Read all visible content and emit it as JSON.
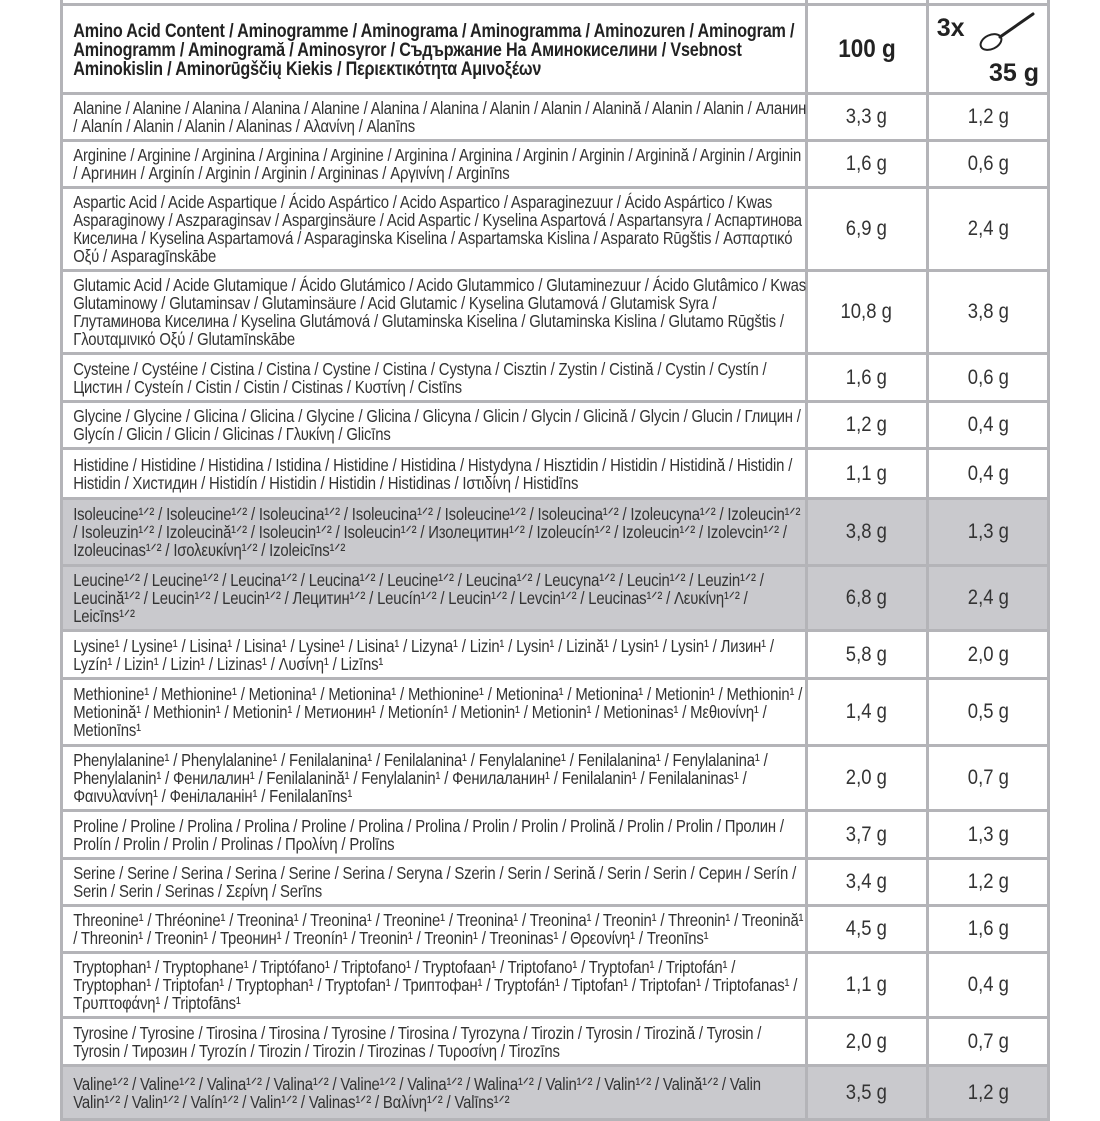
{
  "header": {
    "title": "Amino Acid Content / Aminogramme / Aminograma / Aminogramma / Aminozuren / Aminogram / Aminogramm / Aminogramă / Aminosyror / Съдържание На Аминокиселини / Vsebnost Aminokislin / Aminorūgščių Kiekis / Περιεκτικότητα Αμινοξέων",
    "col_100g": "100 g",
    "serving_count": "3x",
    "serving_icon": "scoop-icon",
    "serving_weight": "35 g"
  },
  "rows": [
    {
      "name": "Alanine / Alanine / Alanina / Alanina / Alanine / Alanina / Alanina / Alanin / Alanin / Alanină / Alanin / Alanin / Аланин / Alanín / Alanin / Alanin / Alaninas / Αλανίνη / Alanīns",
      "per100": "3,3 g",
      "perServing": "1,2 g",
      "shaded": false
    },
    {
      "name": "Arginine / Arginine / Arginina / Arginina / Arginine / Arginina / Arginina / Arginin / Arginin / Arginină / Arginin / Arginin / Аргинин / Arginín / Arginin / Arginin / Argininas / Αργινίνη / Arginīns",
      "per100": "1,6 g",
      "perServing": "0,6 g",
      "shaded": false
    },
    {
      "name": "Aspartic Acid / Acide Aspartique / Ácido Aspártico / Acido Aspartico / Asparaginezuur / Ácido Aspártico / Kwas Asparaginowy / Aszparaginsav / Asparginsäure / Acid Aspartic / Kyselina Aspartová / Aspartansyra / Аспартинова Киселина / Kyselina Aspartamová / Asparaginska Kiselina / Aspartamska Kislina / Asparato Rūgštis / Ασπαρτικό Οξύ / Asparagīnskābe",
      "per100": "6,9 g",
      "perServing": "2,4 g",
      "shaded": false
    },
    {
      "name": "Glutamic Acid / Acide Glutamique / Ácido Glutámico / Acido Glutammico / Glutaminezuur / Ácido Glutâmico / Kwas Glutaminowy / Glutaminsav / Glutaminsäure  / Acid Glutamic / Kyselina Glutamová / Glutamisk Syra / Глутаминова Киселина / Kyselina Glutámová / Glutaminska Kiselina / Glutaminska Kislina / Glutamo Rūgštis / Γλουταμινικό Οξύ / Glutamīnskābe",
      "per100": "10,8 g",
      "perServing": "3,8 g",
      "shaded": false
    },
    {
      "name": "Cysteine / Cystéine / Cistina / Cistina / Cystine / Cistina / Cystyna / Cisztin / Zystin / Cistină / Cystin / Cystín / Цистин / Cysteín / Cistin / Cistin / Cistinas / Κυστίνη / Cistīns",
      "per100": "1,6 g",
      "perServing": "0,6 g",
      "shaded": false
    },
    {
      "name": "Glycine / Glycine / Glicina / Glicina / Glycine / Glicina / Glicyna / Glicin / Glycin / Glicină / Glycin / Glucin / Глицин / Glycín / Glicin / Glicin / Glicinas / Γλυκίνη / Glicīns",
      "per100": "1,2 g",
      "perServing": "0,4 g",
      "shaded": false
    },
    {
      "name": "Histidine / Histidine / Histidina / Istidina / Histidine / Histidina / Histydyna / Hisztidin / Histidin / Histidină / Histidin / Histidin / Хистидин / Histidín / Histidin / Histidin / Histidinas / Ιστιδίνη / Histidīns",
      "per100": "1,1 g",
      "perServing": "0,4 g",
      "shaded": false
    },
    {
      "name": "Isoleucine¹ᐟ² / Isoleucine¹ᐟ² / Isoleucina¹ᐟ² / Isoleucina¹ᐟ² / Isoleucine¹ᐟ² / Isoleucina¹ᐟ² / Izoleucyna¹ᐟ² / Izoleucin¹ᐟ² / Isoleuzin¹ᐟ² / Izoleucină¹ᐟ² / Isoleucin¹ᐟ² / Isoleucin¹ᐟ² / Изолецитин¹ᐟ² / Izoleucín¹ᐟ² / Izoleucin¹ᐟ² / Izolevcin¹ᐟ² / Izoleucinas¹ᐟ² / Ισολευκίνη¹ᐟ² / Izoleicīns¹ᐟ²",
      "per100": "3,8 g",
      "perServing": "1,3 g",
      "shaded": true
    },
    {
      "name": "Leucine¹ᐟ² / Leucine¹ᐟ² / Leucina¹ᐟ² / Leucina¹ᐟ² / Leucine¹ᐟ² / Leucina¹ᐟ² / Leucyna¹ᐟ² / Leucin¹ᐟ² / Leuzin¹ᐟ² / Leucină¹ᐟ² / Leucin¹ᐟ² / Leucin¹ᐟ² / Лецитин¹ᐟ² / Leucín¹ᐟ² / Leucin¹ᐟ² / Levcin¹ᐟ² / Leucinas¹ᐟ² / Λευκίνη¹ᐟ² / Leicīns¹ᐟ²",
      "per100": "6,8 g",
      "perServing": "2,4 g",
      "shaded": true
    },
    {
      "name": "Lysine¹ / Lysine¹ / Lisina¹ / Lisina¹ / Lysine¹ / Lisina¹ / Lizyna¹ / Lizin¹ / Lysin¹ / Lizină¹ / Lysin¹ / Lysin¹ / Лизин¹ / Lyzín¹ / Lizin¹ / Lizin¹ / Lizinas¹ / Λυσίνη¹ / Lizīns¹",
      "per100": "5,8 g",
      "perServing": "2,0 g",
      "shaded": false
    },
    {
      "name": "Methionine¹ / Methionine¹ / Metionina¹ / Metionina¹ / Methionine¹ / Metionina¹ / Metionina¹ / Metionin¹ / Methionin¹ / Metionină¹ / Methionin¹ / Metionin¹ / Метионин¹ / Metionín¹ / Metionin¹ / Metionin¹ / Metioninas¹ / Μεθιονίνη¹ / Metionīns¹",
      "per100": "1,4 g",
      "perServing": "0,5 g",
      "shaded": false
    },
    {
      "name": "Phenylalanine¹ / Phenylalanine¹ / Fenilalanina¹ / Fenilalanina¹ / Fenylalanine¹ / Fenilalanina¹ / Fenylalanina¹ / Phenylalanin¹ / Фенилалин¹ / Fenilalanină¹ / Fenylalanin¹ / Фенилаланин¹ / Fenilalanin¹ / Fenilalaninas¹ / Φαινυλανίνη¹ / Фенілаланін¹ / Fenilalanīns¹",
      "per100": "2,0 g",
      "perServing": "0,7 g",
      "shaded": false
    },
    {
      "name": "Proline / Proline / Prolina / Prolina / Proline / Prolina / Prolina / Prolin / Prolin / Prolină / Prolin / Prolin / Пролин / Prolín / Prolin / Prolin / Prolinas / Προλίνη / Prolīns",
      "per100": "3,7 g",
      "perServing": "1,3 g",
      "shaded": false
    },
    {
      "name": "Serine / Serine / Serina / Serina / Serine / Serina / Seryna / Szerin / Serin / Serină / Serin / Serin / Серин / Serín / Serin / Serin / Serinas / Σερίνη / Serīns",
      "per100": "3,4 g",
      "perServing": "1,2 g",
      "shaded": false
    },
    {
      "name": "Threonine¹ / Thréonine¹ / Treonina¹ / Treonina¹ / Treonine¹ / Treonina¹ / Treonina¹ / Treonin¹ / Threonin¹ / Treonină¹ / Threonin¹ / Treonin¹ / Треонин¹ / Treonín¹ / Treonin¹ / Treonin¹ / Treoninas¹ / Θρεονίνη¹ / Treonīns¹",
      "per100": "4,5 g",
      "perServing": "1,6 g",
      "shaded": false
    },
    {
      "name": "Tryptophan¹ / Tryptophane¹ / Triptófano¹ / Triptofano¹ / Tryptofaan¹ / Triptofano¹ / Tryptofan¹ / Triptofán¹ / Tryptophan¹ / Triptofan¹ / Tryptophan¹ / Tryptofan¹ / Триптофан¹ / Tryptofán¹ / Tiptofan¹ / Triptofan¹ / Triptofanas¹ / Τρυπτοφάνη¹ / Triptofāns¹",
      "per100": "1,1 g",
      "perServing": "0,4 g",
      "shaded": false
    },
    {
      "name": "Tyrosine / Tyrosine / Tirosina / Tirosina / Tyrosine / Tirosina / Tyrozyna / Tirozin / Tyrosin / Tirozină / Tyrosin / Tyrosin / Тирозин / Tyrozín / Tirozin / Tirozin / Tirozinas / Τυροσίνη / Tirozīns",
      "per100": "2,0 g",
      "perServing": "0,7 g",
      "shaded": false
    },
    {
      "name": "Valine¹ᐟ² / Valine¹ᐟ² / Valina¹ᐟ² / Valina¹ᐟ² / Valine¹ᐟ² / Valina¹ᐟ² / Walina¹ᐟ² / Valin¹ᐟ² / Valin¹ᐟ² / Valină¹ᐟ² / Valin Valin¹ᐟ² / Valin¹ᐟ² / Valín¹ᐟ² / Valin¹ᐟ² / Valinas¹ᐟ² / Βαλίνη¹ᐟ² / Valīns¹ᐟ²",
      "per100": "3,5 g",
      "perServing": "1,2 g",
      "shaded": true
    }
  ],
  "colors": {
    "border": "#b4b4b8",
    "shaded_row": "#c9c9cd",
    "text": "#333333"
  }
}
